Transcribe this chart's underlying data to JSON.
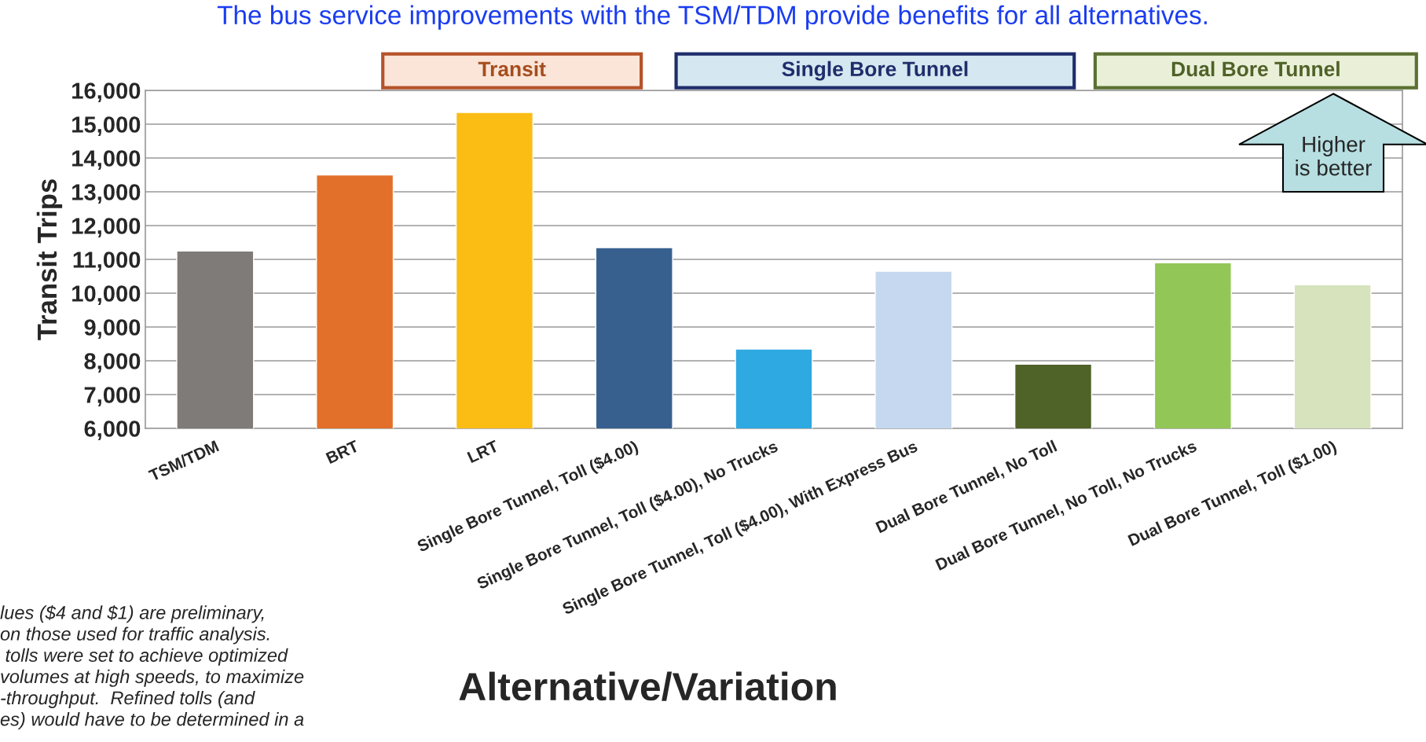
{
  "chart_data": {
    "type": "bar",
    "title": "The bus service improvements with the TSM/TDM provide benefits for all alternatives.",
    "xlabel": "Alternative/Variation",
    "ylabel": "Transit Trips",
    "categories": [
      "TSM/TDM",
      "BRT",
      "LRT",
      "Single Bore Tunnel, Toll ($4.00)",
      "Single Bore Tunnel, Toll ($4.00), No Trucks",
      "Single Bore Tunnel, Toll ($4.00), With Express Bus",
      "Dual Bore Tunnel, No Toll",
      "Dual Bore Tunnel, No Toll, No Trucks",
      "Dual Bore Tunnel, Toll ($1.00)"
    ],
    "values": [
      11250,
      13500,
      15350,
      11350,
      8350,
      10650,
      7900,
      10900,
      10250
    ],
    "colors": [
      "#7f7b78",
      "#e2702a",
      "#fbbd14",
      "#37608f",
      "#2ea9e1",
      "#c5d8ef",
      "#4f6228",
      "#92c656",
      "#d6e3bd"
    ],
    "ylim": [
      6000,
      16000
    ],
    "yticks": [
      {
        "value": 6000,
        "label": "6,000"
      },
      {
        "value": 7000,
        "label": "7,000"
      },
      {
        "value": 8000,
        "label": "8,000"
      },
      {
        "value": 9000,
        "label": "9,000"
      },
      {
        "value": 10000,
        "label": "10,000"
      },
      {
        "value": 11000,
        "label": "11,000"
      },
      {
        "value": 12000,
        "label": "12,000"
      },
      {
        "value": 13000,
        "label": "13,000"
      },
      {
        "value": 14000,
        "label": "14,000"
      },
      {
        "value": 15000,
        "label": "15,000"
      },
      {
        "value": 16000,
        "label": "16,000"
      }
    ],
    "grid": "y",
    "annotations": [
      "Transit",
      "Single Bore Tunnel",
      "Dual Bore Tunnel",
      "Higher\nis better",
      "lues ($4 and $1) are preliminary,\non those used for traffic analysis.\n tolls were set to achieve optimized\nvolumes at high speeds, to maximize\n-throughput.  Refined tolls (and\nes) would have to be determined in a"
    ]
  }
}
